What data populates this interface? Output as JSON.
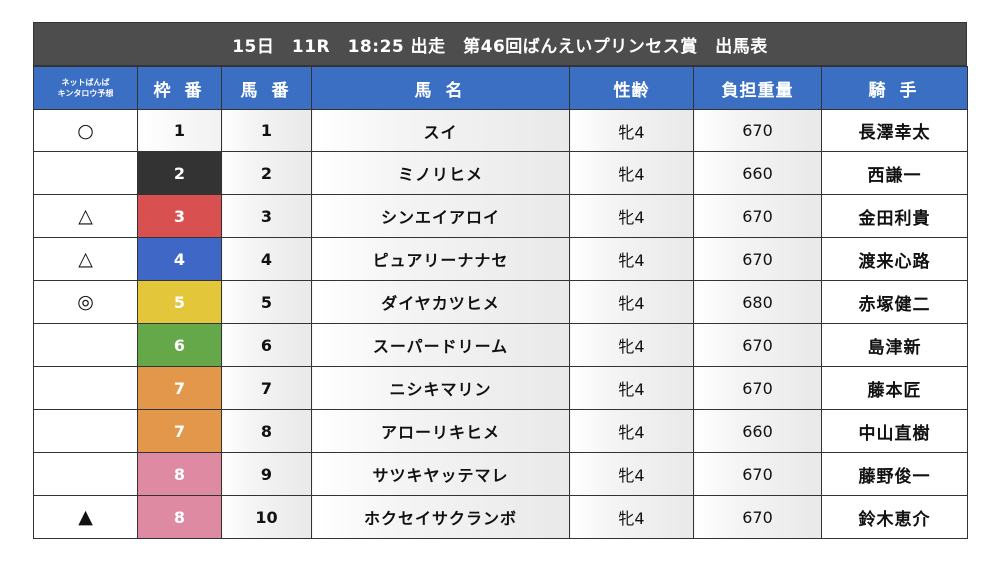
{
  "title": "15日　11R　18:25 出走　第46回ばんえいプリンセス賞　出馬表",
  "headers": {
    "yoso_line1": "ネットばんば",
    "yoso_line2": "キンタロウ予想",
    "waku": "枠 番",
    "umaban": "馬 番",
    "name": "馬 名",
    "sexage": "性齢",
    "weight": "負担重量",
    "jockey": "騎 手"
  },
  "rows": [
    {
      "mark": "○",
      "waku": "1",
      "waku_color": "#ffffff",
      "umaban": "1",
      "name": "スイ",
      "sexage": "牝4",
      "weight": "670",
      "jockey": "長澤幸太"
    },
    {
      "mark": "",
      "waku": "2",
      "waku_color": "#333333",
      "umaban": "2",
      "name": "ミノリヒメ",
      "sexage": "牝4",
      "weight": "660",
      "jockey": "西謙一"
    },
    {
      "mark": "△",
      "waku": "3",
      "waku_color": "#d95050",
      "umaban": "3",
      "name": "シンエイアロイ",
      "sexage": "牝4",
      "weight": "670",
      "jockey": "金田利貴"
    },
    {
      "mark": "△",
      "waku": "4",
      "waku_color": "#3f68c6",
      "umaban": "4",
      "name": "ピュアリーナナセ",
      "sexage": "牝4",
      "weight": "670",
      "jockey": "渡来心路"
    },
    {
      "mark": "◎",
      "waku": "5",
      "waku_color": "#e4c63a",
      "umaban": "5",
      "name": "ダイヤカツヒメ",
      "sexage": "牝4",
      "weight": "680",
      "jockey": "赤塚健二"
    },
    {
      "mark": "",
      "waku": "6",
      "waku_color": "#64a84a",
      "umaban": "6",
      "name": "スーパードリーム",
      "sexage": "牝4",
      "weight": "670",
      "jockey": "島津新"
    },
    {
      "mark": "",
      "waku": "7",
      "waku_color": "#e3974a",
      "umaban": "7",
      "name": "ニシキマリン",
      "sexage": "牝4",
      "weight": "670",
      "jockey": "藤本匠"
    },
    {
      "mark": "",
      "waku": "7",
      "waku_color": "#e3974a",
      "umaban": "8",
      "name": "アローリキヒメ",
      "sexage": "牝4",
      "weight": "660",
      "jockey": "中山直樹"
    },
    {
      "mark": "",
      "waku": "8",
      "waku_color": "#dd8aa2",
      "umaban": "9",
      "name": "サツキヤッテマレ",
      "sexage": "牝4",
      "weight": "670",
      "jockey": "藤野俊一"
    },
    {
      "mark": "▲",
      "waku": "8",
      "waku_color": "#dd8aa2",
      "umaban": "10",
      "name": "ホクセイサクランボ",
      "sexage": "牝4",
      "weight": "670",
      "jockey": "鈴木恵介"
    }
  ]
}
